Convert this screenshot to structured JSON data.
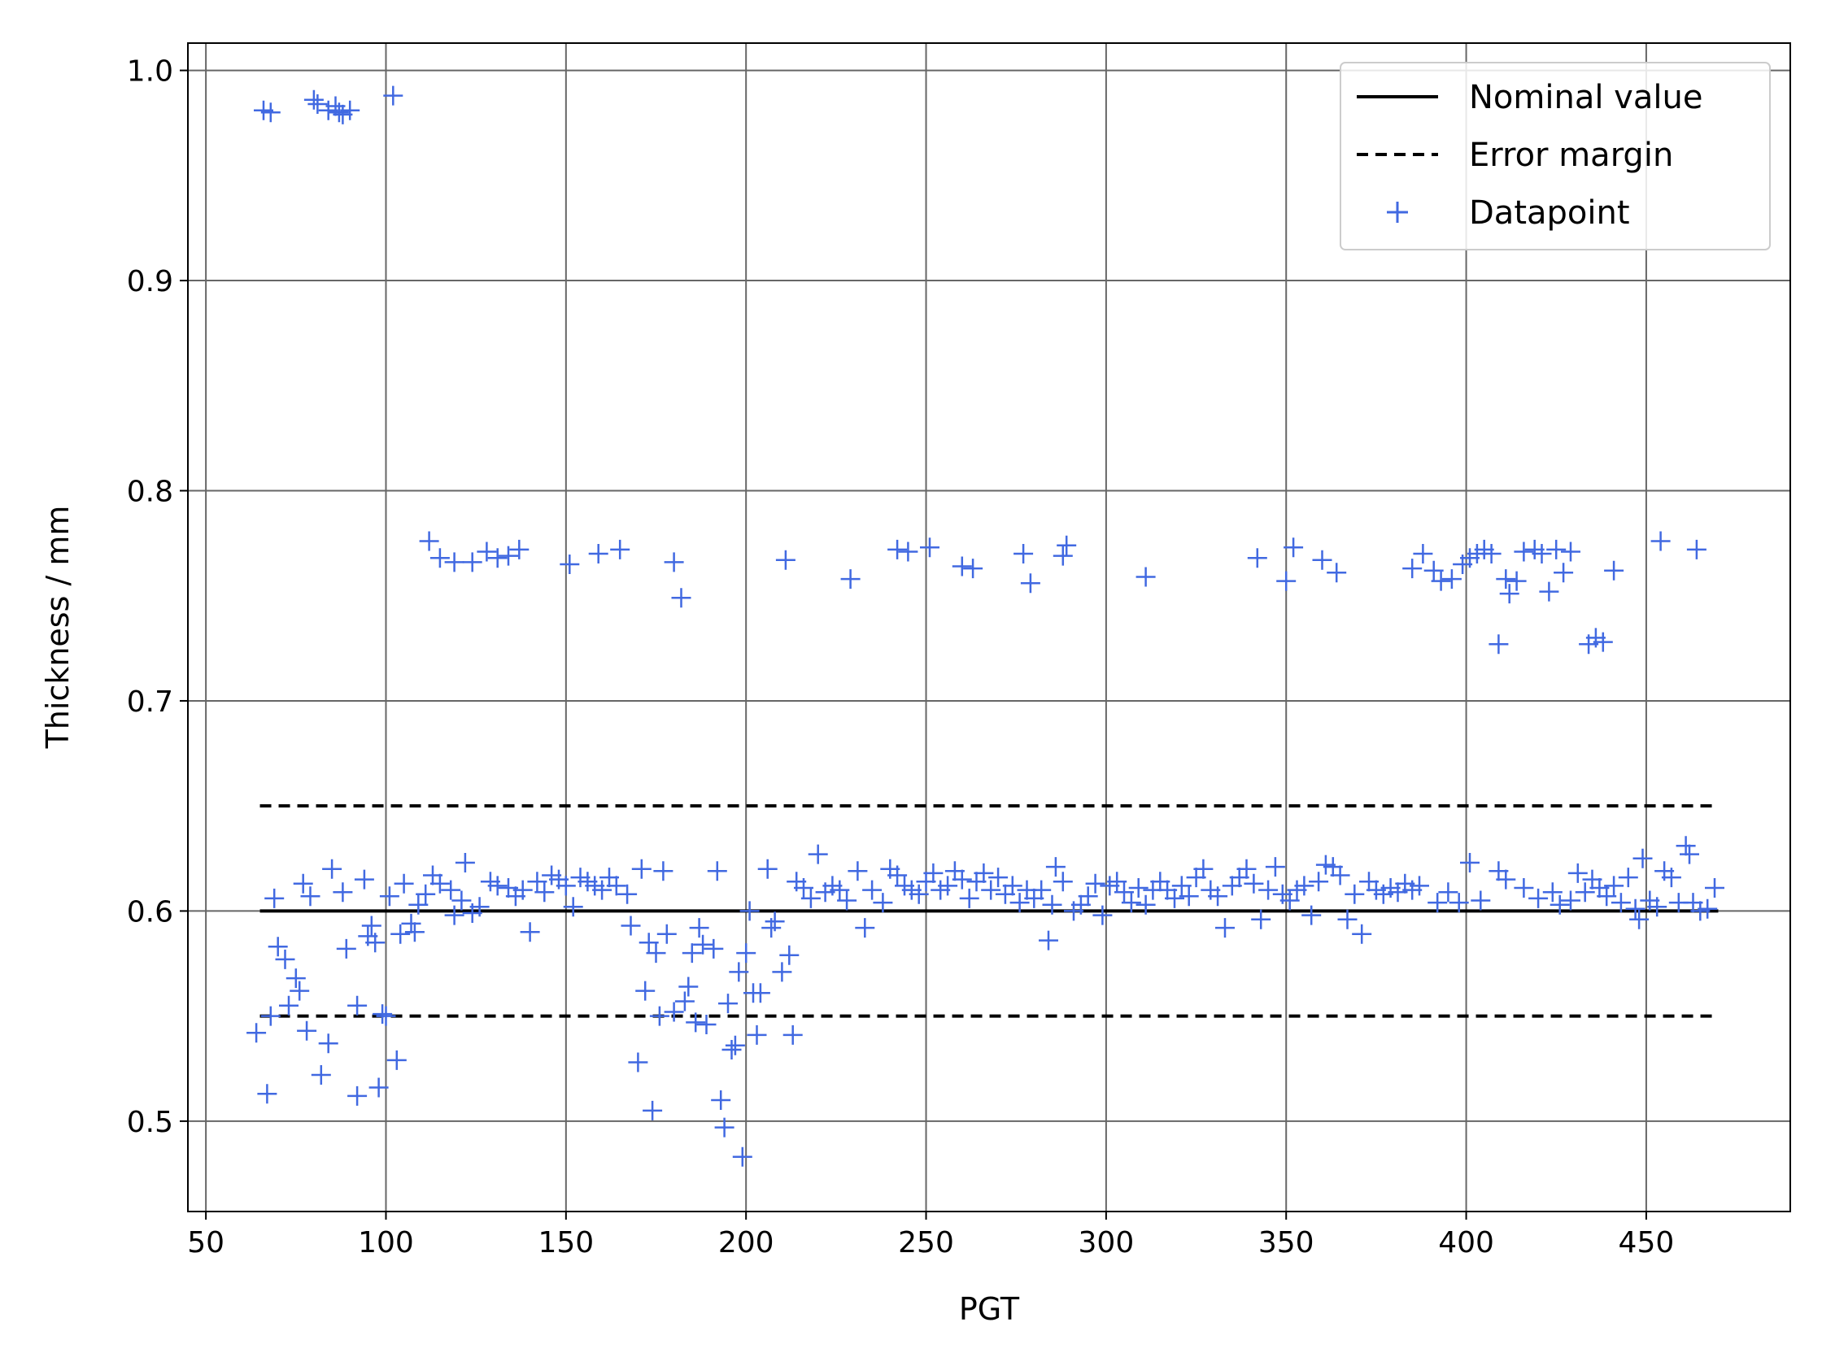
{
  "chart_data": {
    "type": "scatter",
    "xlabel": "PGT",
    "ylabel": "Thickness / mm",
    "xlim": [
      45,
      490
    ],
    "ylim": [
      0.457,
      1.013
    ],
    "xticks": [
      50,
      100,
      150,
      200,
      250,
      300,
      350,
      400,
      450
    ],
    "yticks": [
      0.5,
      0.6,
      0.7,
      0.8,
      0.9,
      1.0
    ],
    "xtick_labels": [
      "50",
      "100",
      "150",
      "200",
      "250",
      "300",
      "350",
      "400",
      "450"
    ],
    "ytick_labels": [
      "0.5",
      "0.6",
      "0.7",
      "0.8",
      "0.9",
      "1.0"
    ],
    "grid": true,
    "legend_position": "top-right",
    "colors": {
      "datapoint": "#4169e1",
      "line": "#000000",
      "grid": "#666666"
    },
    "series": [
      {
        "name": "Nominal value",
        "kind": "line",
        "style": "solid",
        "x": [
          65,
          470
        ],
        "y": [
          0.6,
          0.6
        ]
      },
      {
        "name": "Error margin",
        "kind": "line",
        "style": "dashed",
        "x": [
          65,
          470
        ],
        "y": [
          0.65,
          0.65
        ]
      },
      {
        "kind": "line",
        "style": "dashed",
        "x": [
          65,
          470
        ],
        "y": [
          0.55,
          0.55
        ]
      },
      {
        "name": "Datapoint",
        "kind": "marker",
        "points": [
          [
            66,
            0.981
          ],
          [
            68,
            0.98
          ],
          [
            80,
            0.986
          ],
          [
            81,
            0.984
          ],
          [
            84,
            0.981
          ],
          [
            86,
            0.983
          ],
          [
            87,
            0.98
          ],
          [
            88,
            0.979
          ],
          [
            90,
            0.981
          ],
          [
            102,
            0.988
          ],
          [
            112,
            0.776
          ],
          [
            115,
            0.768
          ],
          [
            119,
            0.766
          ],
          [
            124,
            0.766
          ],
          [
            128,
            0.771
          ],
          [
            131,
            0.768
          ],
          [
            134,
            0.769
          ],
          [
            137,
            0.772
          ],
          [
            151,
            0.765
          ],
          [
            159,
            0.77
          ],
          [
            165,
            0.772
          ],
          [
            180,
            0.766
          ],
          [
            182,
            0.749
          ],
          [
            211,
            0.767
          ],
          [
            229,
            0.758
          ],
          [
            242,
            0.772
          ],
          [
            245,
            0.771
          ],
          [
            251,
            0.773
          ],
          [
            260,
            0.764
          ],
          [
            263,
            0.763
          ],
          [
            277,
            0.77
          ],
          [
            279,
            0.756
          ],
          [
            288,
            0.769
          ],
          [
            289,
            0.774
          ],
          [
            311,
            0.759
          ],
          [
            342,
            0.768
          ],
          [
            350,
            0.757
          ],
          [
            352,
            0.773
          ],
          [
            360,
            0.767
          ],
          [
            364,
            0.761
          ],
          [
            385,
            0.763
          ],
          [
            388,
            0.77
          ],
          [
            391,
            0.762
          ],
          [
            393,
            0.757
          ],
          [
            396,
            0.758
          ],
          [
            399,
            0.765
          ],
          [
            401,
            0.768
          ],
          [
            403,
            0.77
          ],
          [
            405,
            0.772
          ],
          [
            407,
            0.77
          ],
          [
            409,
            0.727
          ],
          [
            411,
            0.758
          ],
          [
            412,
            0.751
          ],
          [
            414,
            0.757
          ],
          [
            416,
            0.771
          ],
          [
            419,
            0.772
          ],
          [
            421,
            0.77
          ],
          [
            423,
            0.752
          ],
          [
            425,
            0.772
          ],
          [
            427,
            0.761
          ],
          [
            429,
            0.771
          ],
          [
            434,
            0.727
          ],
          [
            436,
            0.73
          ],
          [
            438,
            0.728
          ],
          [
            441,
            0.762
          ],
          [
            454,
            0.776
          ],
          [
            464,
            0.772
          ],
          [
            64,
            0.542
          ],
          [
            67,
            0.513
          ],
          [
            68,
            0.55
          ],
          [
            69,
            0.606
          ],
          [
            70,
            0.583
          ],
          [
            72,
            0.577
          ],
          [
            73,
            0.555
          ],
          [
            75,
            0.568
          ],
          [
            76,
            0.562
          ],
          [
            77,
            0.613
          ],
          [
            78,
            0.543
          ],
          [
            79,
            0.607
          ],
          [
            82,
            0.522
          ],
          [
            84,
            0.537
          ],
          [
            85,
            0.62
          ],
          [
            88,
            0.609
          ],
          [
            89,
            0.582
          ],
          [
            92,
            0.512
          ],
          [
            92,
            0.555
          ],
          [
            94,
            0.615
          ],
          [
            95,
            0.588
          ],
          [
            96,
            0.593
          ],
          [
            97,
            0.585
          ],
          [
            98,
            0.516
          ],
          [
            99,
            0.551
          ],
          [
            100,
            0.55
          ],
          [
            101,
            0.607
          ],
          [
            103,
            0.529
          ],
          [
            104,
            0.589
          ],
          [
            105,
            0.613
          ],
          [
            107,
            0.594
          ],
          [
            108,
            0.59
          ],
          [
            109,
            0.603
          ],
          [
            111,
            0.608
          ],
          [
            113,
            0.617
          ],
          [
            115,
            0.613
          ],
          [
            118,
            0.61
          ],
          [
            119,
            0.598
          ],
          [
            121,
            0.605
          ],
          [
            122,
            0.623
          ],
          [
            124,
            0.599
          ],
          [
            126,
            0.602
          ],
          [
            129,
            0.614
          ],
          [
            131,
            0.612
          ],
          [
            134,
            0.611
          ],
          [
            136,
            0.607
          ],
          [
            138,
            0.61
          ],
          [
            140,
            0.59
          ],
          [
            142,
            0.614
          ],
          [
            144,
            0.609
          ],
          [
            146,
            0.617
          ],
          [
            148,
            0.615
          ],
          [
            150,
            0.612
          ],
          [
            152,
            0.602
          ],
          [
            154,
            0.616
          ],
          [
            156,
            0.614
          ],
          [
            158,
            0.612
          ],
          [
            160,
            0.61
          ],
          [
            162,
            0.616
          ],
          [
            164,
            0.612
          ],
          [
            167,
            0.608
          ],
          [
            168,
            0.593
          ],
          [
            170,
            0.528
          ],
          [
            171,
            0.62
          ],
          [
            172,
            0.562
          ],
          [
            173,
            0.585
          ],
          [
            174,
            0.505
          ],
          [
            175,
            0.58
          ],
          [
            176,
            0.55
          ],
          [
            177,
            0.619
          ],
          [
            178,
            0.589
          ],
          [
            180,
            0.552
          ],
          [
            183,
            0.557
          ],
          [
            184,
            0.564
          ],
          [
            185,
            0.58
          ],
          [
            186,
            0.547
          ],
          [
            187,
            0.592
          ],
          [
            188,
            0.584
          ],
          [
            189,
            0.546
          ],
          [
            191,
            0.582
          ],
          [
            192,
            0.619
          ],
          [
            193,
            0.51
          ],
          [
            194,
            0.497
          ],
          [
            195,
            0.556
          ],
          [
            196,
            0.534
          ],
          [
            197,
            0.536
          ],
          [
            198,
            0.571
          ],
          [
            199,
            0.483
          ],
          [
            200,
            0.58
          ],
          [
            201,
            0.6
          ],
          [
            202,
            0.561
          ],
          [
            203,
            0.541
          ],
          [
            204,
            0.561
          ],
          [
            206,
            0.62
          ],
          [
            207,
            0.592
          ],
          [
            208,
            0.595
          ],
          [
            210,
            0.571
          ],
          [
            212,
            0.579
          ],
          [
            213,
            0.541
          ],
          [
            214,
            0.614
          ],
          [
            216,
            0.611
          ],
          [
            218,
            0.606
          ],
          [
            220,
            0.627
          ],
          [
            222,
            0.609
          ],
          [
            224,
            0.612
          ],
          [
            226,
            0.61
          ],
          [
            228,
            0.605
          ],
          [
            231,
            0.619
          ],
          [
            233,
            0.592
          ],
          [
            235,
            0.61
          ],
          [
            238,
            0.604
          ],
          [
            240,
            0.62
          ],
          [
            242,
            0.617
          ],
          [
            244,
            0.612
          ],
          [
            246,
            0.61
          ],
          [
            248,
            0.608
          ],
          [
            250,
            0.614
          ],
          [
            252,
            0.618
          ],
          [
            254,
            0.61
          ],
          [
            256,
            0.612
          ],
          [
            258,
            0.619
          ],
          [
            260,
            0.615
          ],
          [
            262,
            0.606
          ],
          [
            264,
            0.614
          ],
          [
            266,
            0.618
          ],
          [
            268,
            0.61
          ],
          [
            270,
            0.616
          ],
          [
            272,
            0.608
          ],
          [
            274,
            0.612
          ],
          [
            276,
            0.604
          ],
          [
            278,
            0.61
          ],
          [
            280,
            0.606
          ],
          [
            282,
            0.61
          ],
          [
            284,
            0.586
          ],
          [
            285,
            0.603
          ],
          [
            286,
            0.621
          ],
          [
            288,
            0.614
          ],
          [
            291,
            0.6
          ],
          [
            293,
            0.603
          ],
          [
            295,
            0.607
          ],
          [
            297,
            0.613
          ],
          [
            299,
            0.598
          ],
          [
            301,
            0.612
          ],
          [
            303,
            0.614
          ],
          [
            305,
            0.609
          ],
          [
            307,
            0.604
          ],
          [
            309,
            0.611
          ],
          [
            311,
            0.603
          ],
          [
            313,
            0.61
          ],
          [
            315,
            0.614
          ],
          [
            317,
            0.61
          ],
          [
            319,
            0.606
          ],
          [
            321,
            0.612
          ],
          [
            323,
            0.607
          ],
          [
            325,
            0.616
          ],
          [
            327,
            0.62
          ],
          [
            329,
            0.61
          ],
          [
            331,
            0.607
          ],
          [
            333,
            0.592
          ],
          [
            335,
            0.612
          ],
          [
            337,
            0.616
          ],
          [
            339,
            0.62
          ],
          [
            341,
            0.613
          ],
          [
            343,
            0.596
          ],
          [
            345,
            0.61
          ],
          [
            347,
            0.621
          ],
          [
            349,
            0.608
          ],
          [
            351,
            0.605
          ],
          [
            353,
            0.61
          ],
          [
            355,
            0.612
          ],
          [
            357,
            0.598
          ],
          [
            359,
            0.614
          ],
          [
            361,
            0.622
          ],
          [
            363,
            0.621
          ],
          [
            365,
            0.617
          ],
          [
            367,
            0.596
          ],
          [
            369,
            0.608
          ],
          [
            371,
            0.589
          ],
          [
            373,
            0.614
          ],
          [
            375,
            0.61
          ],
          [
            377,
            0.608
          ],
          [
            379,
            0.611
          ],
          [
            381,
            0.609
          ],
          [
            383,
            0.613
          ],
          [
            385,
            0.61
          ],
          [
            387,
            0.612
          ],
          [
            392,
            0.604
          ],
          [
            395,
            0.609
          ],
          [
            398,
            0.604
          ],
          [
            401,
            0.623
          ],
          [
            404,
            0.605
          ],
          [
            409,
            0.619
          ],
          [
            411,
            0.615
          ],
          [
            416,
            0.611
          ],
          [
            420,
            0.606
          ],
          [
            424,
            0.609
          ],
          [
            426,
            0.603
          ],
          [
            429,
            0.605
          ],
          [
            431,
            0.618
          ],
          [
            433,
            0.609
          ],
          [
            435,
            0.615
          ],
          [
            437,
            0.611
          ],
          [
            439,
            0.607
          ],
          [
            441,
            0.612
          ],
          [
            443,
            0.604
          ],
          [
            445,
            0.616
          ],
          [
            447,
            0.601
          ],
          [
            448,
            0.596
          ],
          [
            449,
            0.625
          ],
          [
            451,
            0.605
          ],
          [
            453,
            0.602
          ],
          [
            455,
            0.619
          ],
          [
            457,
            0.616
          ],
          [
            459,
            0.604
          ],
          [
            461,
            0.631
          ],
          [
            462,
            0.627
          ],
          [
            463,
            0.604
          ],
          [
            465,
            0.6
          ],
          [
            467,
            0.601
          ],
          [
            469,
            0.611
          ]
        ]
      }
    ]
  }
}
